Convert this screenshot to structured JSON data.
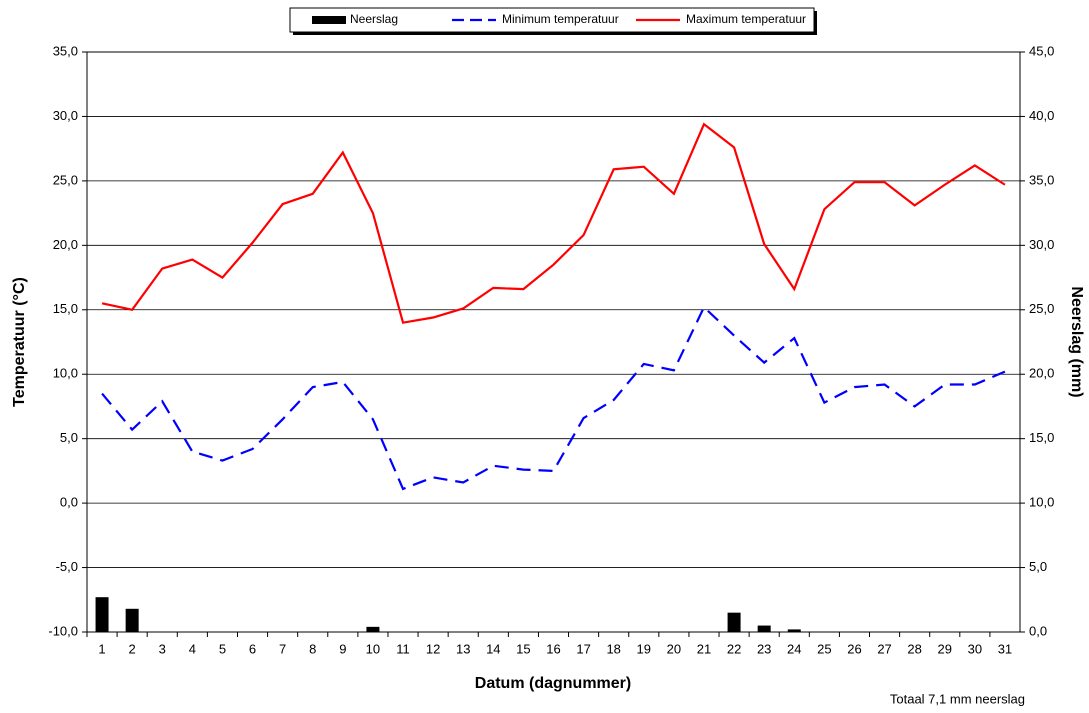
{
  "chart_data": {
    "type": "combo",
    "xlabel": "Datum (dagnummer)",
    "ylabel": "Temperatuur (°C)",
    "y2label": "Neerslag (mm)",
    "annotation": "Totaal 7,1 mm neerslag",
    "categories": [
      "1",
      "2",
      "3",
      "4",
      "5",
      "6",
      "7",
      "8",
      "9",
      "10",
      "11",
      "12",
      "13",
      "14",
      "15",
      "16",
      "17",
      "18",
      "19",
      "20",
      "21",
      "22",
      "23",
      "24",
      "25",
      "26",
      "27",
      "28",
      "29",
      "30",
      "31"
    ],
    "series": [
      {
        "name": "Neerslag",
        "type": "bar",
        "axis": "y2",
        "color": "#000000",
        "values": [
          2.7,
          1.8,
          0,
          0,
          0,
          0,
          0,
          0,
          0,
          0.4,
          0,
          0,
          0,
          0,
          0,
          0,
          0,
          0,
          0,
          0,
          0,
          1.5,
          0.5,
          0.2,
          0,
          0,
          0,
          0,
          0,
          0,
          0
        ]
      },
      {
        "name": "Minimum temperatuur",
        "type": "line",
        "line_style": "dashed",
        "color": "#0000ff",
        "values": [
          8.5,
          5.7,
          7.9,
          4.0,
          3.3,
          4.2,
          6.5,
          9.0,
          9.4,
          6.5,
          1.1,
          2.0,
          1.6,
          2.9,
          2.6,
          2.5,
          6.6,
          8.0,
          10.8,
          10.3,
          15.2,
          13.0,
          10.9,
          12.8,
          7.8,
          9.0,
          9.2,
          7.5,
          9.2,
          9.2,
          10.2
        ]
      },
      {
        "name": "Maximum temperatuur",
        "type": "line",
        "line_style": "solid",
        "color": "#ff0000",
        "values": [
          15.5,
          15.0,
          18.2,
          18.9,
          17.5,
          20.2,
          23.2,
          24.0,
          27.2,
          22.5,
          14.0,
          14.4,
          15.1,
          16.7,
          16.6,
          18.5,
          20.8,
          25.9,
          26.1,
          24.0,
          29.4,
          27.6,
          20.1,
          16.6,
          22.8,
          24.9,
          24.9,
          23.1,
          24.7,
          26.2,
          24.7
        ]
      }
    ],
    "ylim": [
      -10,
      35
    ],
    "yticks": [
      {
        "value": -10,
        "label": "-10,0"
      },
      {
        "value": -5,
        "label": "-5,0"
      },
      {
        "value": 0,
        "label": "0,0"
      },
      {
        "value": 5,
        "label": "5,0"
      },
      {
        "value": 10,
        "label": "10,0"
      },
      {
        "value": 15,
        "label": "15,0"
      },
      {
        "value": 20,
        "label": "20,0"
      },
      {
        "value": 25,
        "label": "25,0"
      },
      {
        "value": 30,
        "label": "30,0"
      },
      {
        "value": 35,
        "label": "35,0"
      }
    ],
    "y2lim": [
      0,
      45
    ],
    "y2ticks": [
      {
        "value": 0,
        "label": "0,0"
      },
      {
        "value": 5,
        "label": "5,0"
      },
      {
        "value": 10,
        "label": "10,0"
      },
      {
        "value": 15,
        "label": "15,0"
      },
      {
        "value": 20,
        "label": "20,0"
      },
      {
        "value": 25,
        "label": "25,0"
      },
      {
        "value": 30,
        "label": "30,0"
      },
      {
        "value": 35,
        "label": "35,0"
      },
      {
        "value": 40,
        "label": "40,0"
      },
      {
        "value": 45,
        "label": "45,0"
      }
    ],
    "grid": true,
    "legend": "top"
  }
}
